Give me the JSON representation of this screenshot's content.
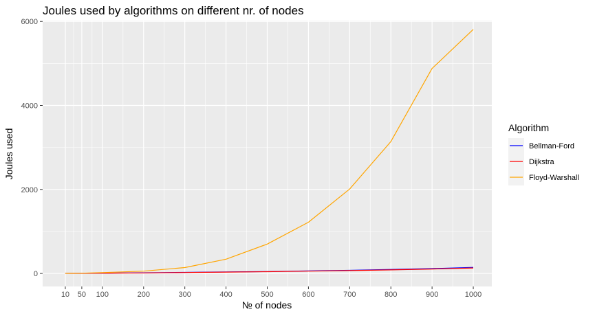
{
  "chart_data": {
    "type": "line",
    "title": "Joules used by algorithms on different nr. of nodes",
    "xlabel": "№ of nodes",
    "ylabel": "Joules used",
    "x": [
      10,
      50,
      100,
      200,
      300,
      400,
      500,
      600,
      700,
      800,
      900,
      1000
    ],
    "x_ticks": [
      10,
      50,
      100,
      200,
      300,
      400,
      500,
      600,
      700,
      800,
      900,
      1000
    ],
    "y_ticks": [
      0,
      2000,
      4000,
      6000
    ],
    "xlim": [
      -45,
      1045
    ],
    "ylim": [
      -310,
      6020
    ],
    "grid": true,
    "legend": {
      "title": "Algorithm",
      "position": "right"
    },
    "series": [
      {
        "name": "Bellman-Ford",
        "color": "#0000ff",
        "values": [
          2,
          5,
          8,
          15,
          25,
          35,
          45,
          60,
          75,
          95,
          115,
          145
        ]
      },
      {
        "name": "Dijkstra",
        "color": "#ff0000",
        "values": [
          2,
          4,
          7,
          13,
          22,
          32,
          42,
          55,
          68,
          85,
          105,
          130
        ]
      },
      {
        "name": "Floyd-Warshall",
        "color": "#ffa500",
        "values": [
          3,
          5,
          20,
          55,
          140,
          340,
          700,
          1220,
          2010,
          3140,
          4880,
          5810
        ]
      }
    ]
  }
}
